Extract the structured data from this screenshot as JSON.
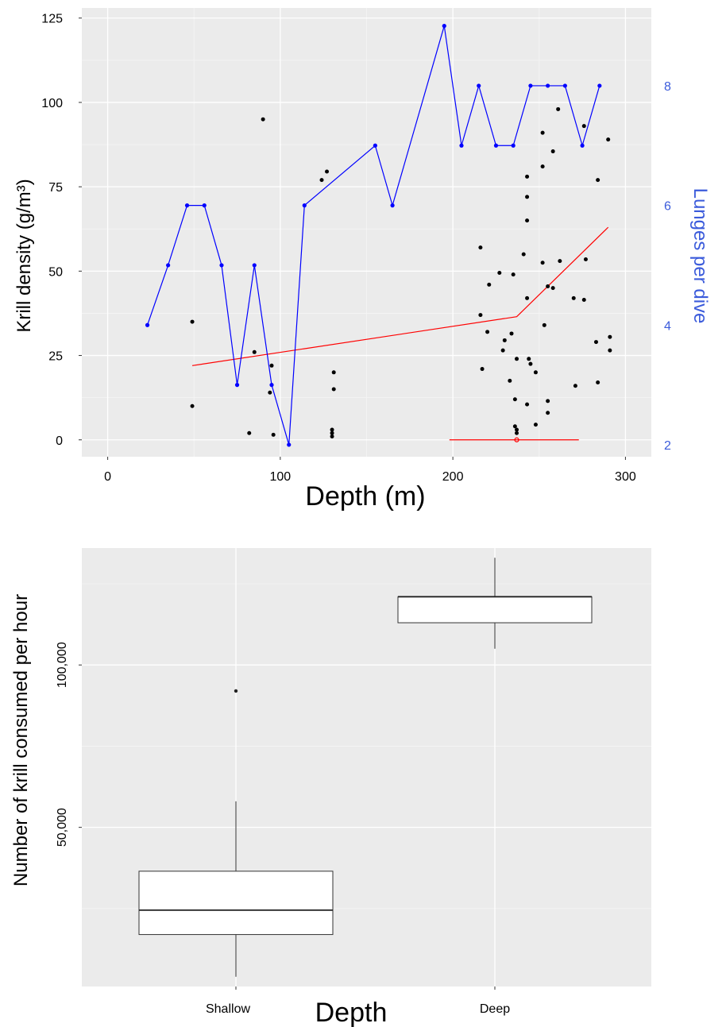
{
  "chart_data": [
    {
      "type": "scatter",
      "xlabel": "Depth (m)",
      "ylabel": "Krill density (g/m³)",
      "y2label": "Lunges per dive",
      "xlim": [
        -15,
        315
      ],
      "ylim": [
        -5,
        128
      ],
      "y2lim": [
        1.8,
        9.3
      ],
      "x_ticks": [
        "0",
        "100",
        "200",
        "300"
      ],
      "x_tick_values": [
        0,
        100,
        200,
        300
      ],
      "y_ticks": [
        "0",
        "25",
        "50",
        "75",
        "100",
        "125"
      ],
      "y_tick_values": [
        0,
        25,
        50,
        75,
        100,
        125
      ],
      "y2_ticks": [
        "2",
        "4",
        "6",
        "8"
      ],
      "y2_tick_values": [
        2,
        4,
        6,
        8
      ],
      "grid": true,
      "colors": {
        "points": "#000000",
        "lunges": "#0000ff",
        "fit": "#ff0000",
        "y2_text": "#3b5bdb",
        "panel": "#ebebeb"
      },
      "series": [
        {
          "kind": "points",
          "x": [
            49,
            49,
            82,
            85,
            90,
            94,
            95,
            96,
            124,
            127,
            130,
            130,
            130,
            131,
            131,
            216,
            216,
            217,
            220,
            221,
            227,
            229,
            230,
            233,
            234,
            235,
            236,
            236,
            237,
            237,
            237,
            241,
            243,
            243,
            243,
            243,
            243,
            244,
            245,
            248,
            248,
            252,
            252,
            252,
            253,
            255,
            255,
            255,
            258,
            258,
            261,
            262,
            270,
            271,
            276,
            276,
            277,
            283,
            284,
            284,
            290,
            291,
            291
          ],
          "y": [
            35,
            10,
            2,
            26,
            95,
            14,
            22,
            1.5,
            77,
            79.5,
            3,
            2,
            1,
            20,
            15,
            57,
            37,
            21,
            32,
            46,
            49.5,
            26.5,
            29.5,
            17.5,
            31.5,
            49,
            4,
            12,
            3,
            2,
            24,
            55,
            78,
            72,
            65,
            42,
            10.5,
            24,
            22.5,
            20,
            4.5,
            81,
            91,
            52.5,
            34,
            11.5,
            8,
            45.5,
            45,
            85.5,
            98,
            53,
            42,
            16,
            41.5,
            93,
            53.5,
            29,
            77,
            17,
            89,
            30.5,
            26.5
          ]
        },
        {
          "kind": "lunges",
          "x": [
            23,
            35,
            46,
            56,
            66,
            75,
            85,
            95,
            105,
            114,
            155,
            165,
            195,
            205,
            215,
            225,
            235,
            245,
            255,
            265,
            275,
            285
          ],
          "y2": [
            4,
            5,
            6,
            6,
            5,
            3,
            5,
            3,
            2,
            6,
            7,
            6,
            9,
            7,
            8,
            7,
            7,
            8,
            8,
            8,
            7,
            8
          ]
        },
        {
          "kind": "fit",
          "x": [
            49,
            237,
            290
          ],
          "y": [
            22,
            36.5,
            63
          ]
        },
        {
          "kind": "threshold",
          "x": [
            198,
            273
          ],
          "y": [
            0,
            0
          ],
          "point": [
            237,
            0
          ]
        }
      ]
    },
    {
      "type": "box",
      "xlabel": "Depth",
      "ylabel": "Number of krill consumed per hour",
      "categories": [
        "Shallow",
        "Deep"
      ],
      "ylim": [
        1000,
        136000
      ],
      "y_ticks": [
        "50,000",
        "100,000"
      ],
      "y_tick_values": [
        50000,
        100000
      ],
      "boxes": [
        {
          "category": "Shallow",
          "min": 4000,
          "q1": 17000,
          "median": 24500,
          "q3": 36500,
          "max": 58000,
          "outliers": [
            92000
          ]
        },
        {
          "category": "Deep",
          "min": 105000,
          "q1": 113000,
          "median": 121000,
          "q3": 121000,
          "max": 133000,
          "outliers": []
        }
      ]
    }
  ]
}
